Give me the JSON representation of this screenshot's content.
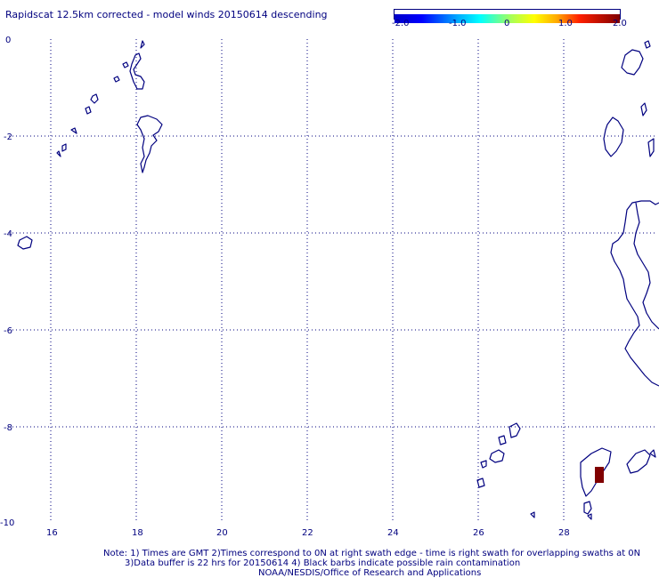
{
  "title": "Rapidscat 12.5km corrected - model winds 20150614 descending",
  "colorbar": {
    "labels": [
      "-2.0",
      "-1.0",
      "0",
      "1.0",
      "2.0"
    ],
    "colors": [
      "#0000c8",
      "#0000ff",
      "#00aaff",
      "#00ffff",
      "#aaff55",
      "#ffff00",
      "#ffaa00",
      "#ff0000",
      "#aa0000",
      "#800000"
    ]
  },
  "map": {
    "x_ticks": [
      "16",
      "18",
      "20",
      "22",
      "24",
      "26",
      "28"
    ],
    "y_ticks": [
      "0",
      "-2",
      "-4",
      "-6",
      "-8",
      "-10"
    ],
    "grid": true,
    "coastline_color": "#00007f",
    "grid_color": "#00007f",
    "highlight_color": "#800000"
  },
  "notes": {
    "line1": "Note: 1) Times are GMT 2)Times correspond to 0N at right swath edge - time is right swath for overlapping swaths at 0N",
    "line2": "3)Data buffer is 22 hrs for 20150614 4) Black barbs indicate possible rain contamination",
    "line3": "NOAA/NESDIS/Office of Research and Applications"
  }
}
